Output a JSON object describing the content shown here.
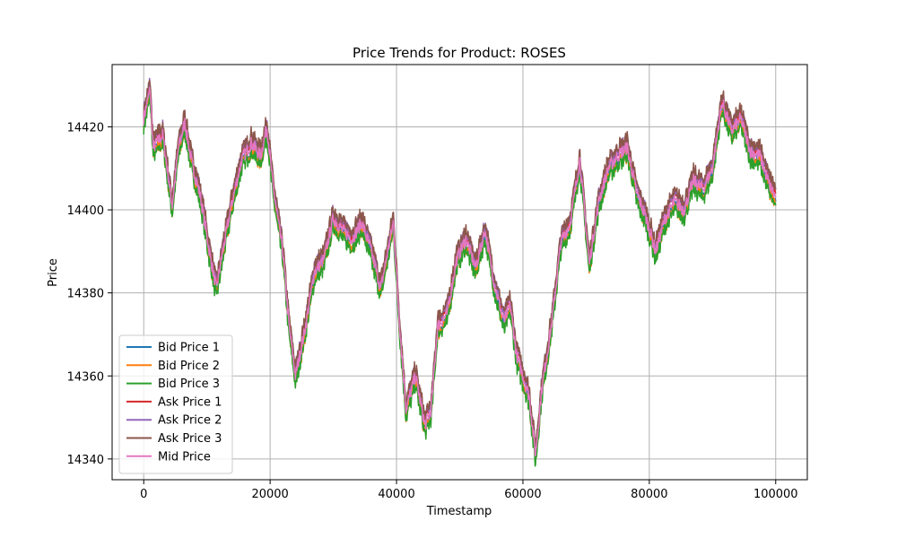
{
  "chart_data": {
    "type": "line",
    "title": "Price Trends for Product: ROSES",
    "xlabel": "Timestamp",
    "ylabel": "Price",
    "xlim": [
      -5000,
      105000
    ],
    "ylim": [
      14335,
      14435
    ],
    "xticks": [
      0,
      20000,
      40000,
      60000,
      80000,
      100000
    ],
    "xtick_labels": [
      "0",
      "20000",
      "40000",
      "60000",
      "80000",
      "100000"
    ],
    "yticks": [
      14340,
      14360,
      14380,
      14400,
      14420
    ],
    "ytick_labels": [
      "14340",
      "14360",
      "14380",
      "14400",
      "14420"
    ],
    "grid": true,
    "legend_position": "lower-left",
    "mid_price": {
      "x": [
        0,
        1000,
        1500,
        3000,
        4500,
        5500,
        6500,
        7500,
        9000,
        10500,
        11500,
        12500,
        14000,
        15500,
        17000,
        18500,
        19500,
        20500,
        22000,
        23000,
        24000,
        25500,
        27000,
        28500,
        30000,
        31500,
        33000,
        34500,
        36000,
        37500,
        39500,
        40500,
        41500,
        43000,
        44500,
        45500,
        46500,
        48000,
        49500,
        51000,
        52500,
        54000,
        55500,
        57000,
        58000,
        59000,
        60000,
        61000,
        62000,
        63000,
        64500,
        66000,
        67500,
        69000,
        70500,
        72000,
        73500,
        75000,
        76500,
        78000,
        79500,
        81000,
        82500,
        84000,
        85500,
        87000,
        88500,
        90000,
        91500,
        93000,
        94500,
        96000,
        97500,
        99000,
        100000
      ],
      "y": [
        14422,
        14429,
        14415,
        14418,
        14401,
        14415,
        14421,
        14412,
        14403,
        14389,
        14381,
        14390,
        14402,
        14412,
        14416,
        14413,
        14420,
        14405,
        14390,
        14372,
        14360,
        14371,
        14385,
        14388,
        14398,
        14395,
        14393,
        14397,
        14390,
        14381,
        14397,
        14372,
        14352,
        14360,
        14348,
        14352,
        14372,
        14375,
        14388,
        14393,
        14386,
        14395,
        14382,
        14373,
        14377,
        14365,
        14360,
        14355,
        14341,
        14357,
        14372,
        14392,
        14397,
        14412,
        14387,
        14402,
        14410,
        14413,
        14415,
        14404,
        14398,
        14390,
        14398,
        14402,
        14400,
        14407,
        14405,
        14410,
        14426,
        14419,
        14422,
        14414,
        14413,
        14406,
        14403
      ]
    },
    "series": [
      {
        "name": "Bid Price 1",
        "color": "#1f77b4",
        "offset": -1.2
      },
      {
        "name": "Bid Price 2",
        "color": "#ff7f0e",
        "offset": -1.7
      },
      {
        "name": "Bid Price 3",
        "color": "#2ca02c",
        "offset": -2.2
      },
      {
        "name": "Ask Price 1",
        "color": "#d62728",
        "offset": 1.2
      },
      {
        "name": "Ask Price 2",
        "color": "#9467bd",
        "offset": 1.7
      },
      {
        "name": "Ask Price 3",
        "color": "#8c564b",
        "offset": 2.2
      },
      {
        "name": "Mid Price",
        "color": "#e377c2",
        "offset": 0
      }
    ]
  }
}
